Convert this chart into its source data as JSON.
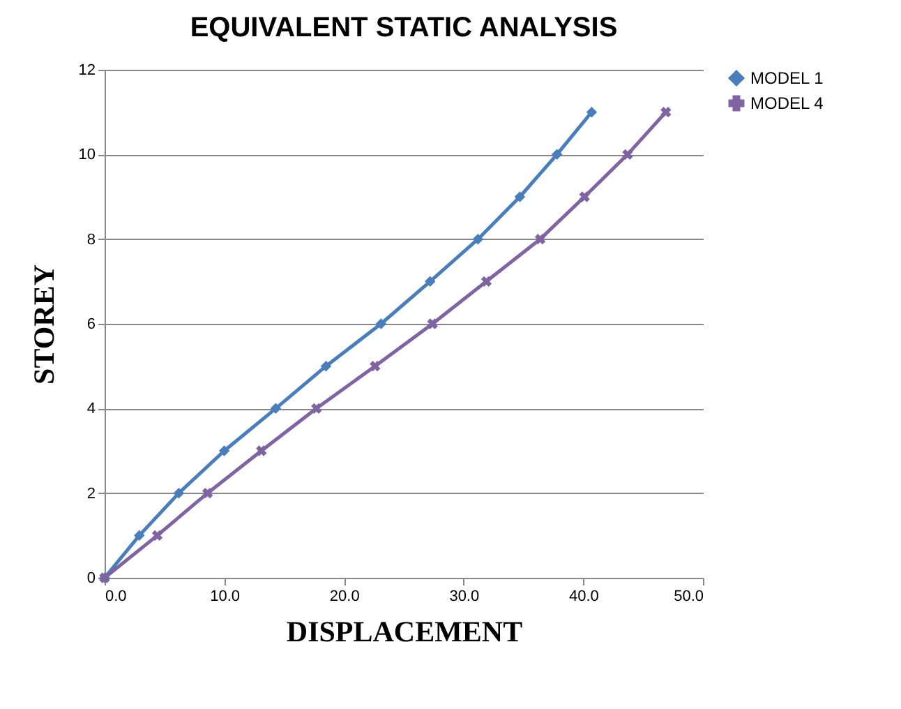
{
  "chart_data": {
    "type": "line",
    "title": "EQUIVALENT STATIC ANALYSIS",
    "xlabel": "DISPLACEMENT",
    "ylabel": "STOREY",
    "series": [
      {
        "name": "MODEL 1",
        "color": "#4a7ebb",
        "marker": "diamond",
        "x": [
          0,
          2.9,
          6.2,
          10.0,
          14.3,
          18.5,
          23.1,
          27.2,
          31.2,
          34.7,
          37.8,
          40.7
        ],
        "values": [
          0,
          1,
          2,
          3,
          4,
          5,
          6,
          7,
          8,
          9,
          10,
          11
        ]
      },
      {
        "name": "MODEL 4",
        "color": "#8064a2",
        "marker": "cross",
        "x": [
          0,
          4.4,
          8.6,
          13.1,
          17.7,
          22.6,
          27.4,
          31.9,
          36.4,
          40.1,
          43.7,
          46.9
        ],
        "values": [
          0,
          1,
          2,
          3,
          4,
          5,
          6,
          7,
          8,
          9,
          10,
          11
        ]
      }
    ],
    "xlim": [
      0,
      50
    ],
    "xticks": [
      {
        "value": 0,
        "label": "0.0"
      },
      {
        "value": 10,
        "label": "10.0"
      },
      {
        "value": 20,
        "label": "20.0"
      },
      {
        "value": 30,
        "label": "30.0"
      },
      {
        "value": 40,
        "label": "40.0"
      },
      {
        "value": 50,
        "label": "50.0"
      }
    ],
    "ylim": [
      0,
      12
    ],
    "yticks": [
      0,
      2,
      4,
      6,
      8,
      10,
      12
    ],
    "grid": "y",
    "legend": "right",
    "line_style": "solid"
  }
}
